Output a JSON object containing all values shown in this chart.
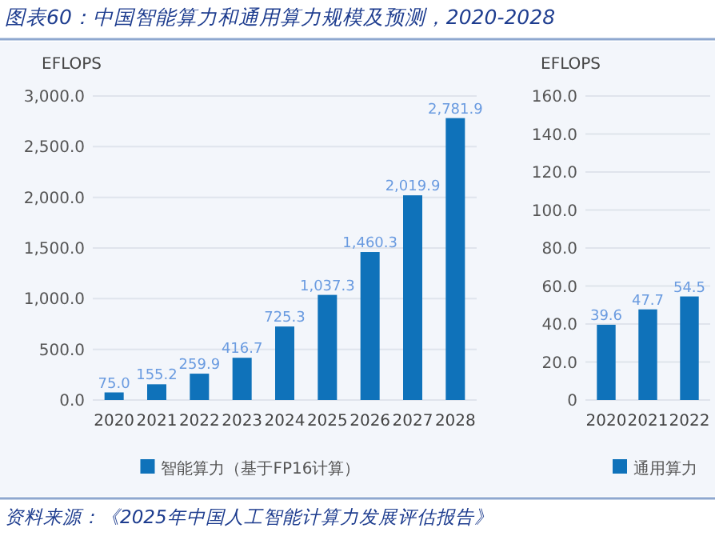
{
  "chart_data": [
    {
      "type": "bar",
      "title": "图表60：中国智能算力和通用算力规模及预测，2020-2028",
      "ylabel": "EFLOPS",
      "categories": [
        "2020",
        "2021",
        "2022",
        "2023",
        "2024",
        "2025",
        "2026",
        "2027",
        "2028"
      ],
      "series": [
        {
          "name": "智能算力（基于FP16计算）",
          "color": "#0f72ba",
          "values": [
            75.0,
            155.2,
            259.9,
            416.7,
            725.3,
            1037.3,
            1460.3,
            2019.9,
            2781.9
          ],
          "value_labels": [
            "75.0",
            "155.2",
            "259.9",
            "416.7",
            "725.3",
            "1,037.3",
            "1,460.3",
            "2,019.9",
            "2,781.9"
          ]
        }
      ],
      "ylim": [
        0,
        3000
      ],
      "yticks": [
        {
          "value": 0,
          "label": "0.0"
        },
        {
          "value": 500,
          "label": "500.0"
        },
        {
          "value": 1000,
          "label": "1,000.0"
        },
        {
          "value": 1500,
          "label": "1,500.0"
        },
        {
          "value": 2000,
          "label": "2,000.0"
        },
        {
          "value": 2500,
          "label": "2,500.0"
        },
        {
          "value": 3000,
          "label": "3,000.0"
        }
      ],
      "grid": "y",
      "legend": "bottom",
      "annotations": [
        "资料来源：《2025年中国人工智能计算力发展评估报告》"
      ]
    },
    {
      "type": "bar",
      "ylabel": "EFLOPS",
      "categories": [
        "2020",
        "2021",
        "2022"
      ],
      "series": [
        {
          "name": "通用算力",
          "color": "#0f72ba",
          "values": [
            39.6,
            47.7,
            54.5
          ],
          "value_labels": [
            "39.6",
            "47.7",
            "54.5"
          ]
        }
      ],
      "ylim": [
        0,
        160
      ],
      "yticks": [
        {
          "value": 0,
          "label": "0"
        },
        {
          "value": 20,
          "label": "20.0"
        },
        {
          "value": 40,
          "label": "40.0"
        },
        {
          "value": 60,
          "label": "60.0"
        },
        {
          "value": 80,
          "label": "80.0"
        },
        {
          "value": 100,
          "label": "100.0"
        },
        {
          "value": 120,
          "label": "120.0"
        },
        {
          "value": 140,
          "label": "140.0"
        },
        {
          "value": 160,
          "label": "160.0"
        }
      ],
      "grid": "y",
      "legend": "bottom"
    }
  ]
}
